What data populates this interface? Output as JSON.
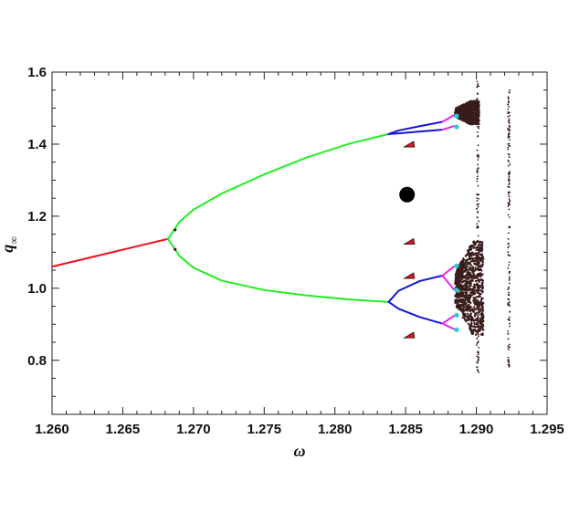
{
  "chart_data": {
    "type": "scatter",
    "title": "",
    "xlabel": "ω",
    "ylabel": "q",
    "ylabel_subscript": "∞",
    "xlim": [
      1.26,
      1.295
    ],
    "ylim": [
      0.65,
      1.6
    ],
    "x_ticks": [
      "1.260",
      "1.265",
      "1.270",
      "1.275",
      "1.280",
      "1.285",
      "1.290",
      "1.295"
    ],
    "y_ticks": [
      "0.8",
      "1.0",
      "1.2",
      "1.4",
      "1.6"
    ],
    "grid": false,
    "colors": {
      "period1": "#e8141e",
      "period2": "#22ee22",
      "period4": "#1515d6",
      "period8": "#ee22ee",
      "period16": "#22d0d0",
      "chaos": "#3a1c1c",
      "marker": "#000000"
    },
    "series": [
      {
        "period": 1,
        "color_key": "period1",
        "x": [
          1.26,
          1.2682
        ],
        "y": [
          1.06,
          1.137
        ]
      },
      {
        "period": 2,
        "color_key": "period2",
        "x": [
          1.2682,
          1.269,
          1.27,
          1.272,
          1.275,
          1.278,
          1.281,
          1.2838
        ],
        "upper": [
          1.137,
          1.184,
          1.218,
          1.263,
          1.316,
          1.363,
          1.401,
          1.428
        ],
        "lower": [
          1.137,
          1.09,
          1.057,
          1.021,
          0.995,
          0.98,
          0.969,
          0.962
        ]
      },
      {
        "period": 4,
        "color_key": "period4",
        "branches": [
          {
            "x": [
              1.2838,
              1.2845,
              1.286,
              1.2876
            ],
            "y": [
              1.428,
              1.438,
              1.45,
              1.462
            ]
          },
          {
            "x": [
              1.2838,
              1.2845,
              1.286,
              1.2876
            ],
            "y": [
              1.428,
              1.43,
              1.435,
              1.44
            ]
          },
          {
            "x": [
              1.2838,
              1.2845,
              1.286,
              1.2876
            ],
            "y": [
              0.962,
              0.993,
              1.02,
              1.035
            ]
          },
          {
            "x": [
              1.2838,
              1.2845,
              1.286,
              1.2876
            ],
            "y": [
              0.962,
              0.943,
              0.92,
              0.902
            ]
          }
        ]
      },
      {
        "period": 8,
        "color_key": "period8",
        "branches": [
          {
            "x": [
              1.2876,
              1.2884
            ],
            "y": [
              1.462,
              1.48
            ]
          },
          {
            "x": [
              1.2876,
              1.2884
            ],
            "y": [
              1.44,
              1.45
            ]
          },
          {
            "x": [
              1.2876,
              1.2884
            ],
            "y": [
              1.035,
              1.06
            ]
          },
          {
            "x": [
              1.2876,
              1.2884
            ],
            "y": [
              1.035,
              0.997
            ]
          },
          {
            "x": [
              1.2876,
              1.2884
            ],
            "y": [
              0.902,
              0.923
            ]
          },
          {
            "x": [
              1.2876,
              1.2884
            ],
            "y": [
              0.902,
              0.887
            ]
          }
        ]
      },
      {
        "period": 16,
        "color_key": "period16",
        "x": [
          1.2886,
          1.2886,
          1.2886,
          1.2886,
          1.2886,
          1.2886
        ],
        "y": [
          1.478,
          1.448,
          1.062,
          0.995,
          0.925,
          0.885
        ]
      },
      {
        "period": 3,
        "color_key": "period1",
        "window": true,
        "x": [
          1.2853,
          1.2853,
          1.2853,
          1.2853
        ],
        "y": [
          1.4,
          1.13,
          1.035,
          0.87
        ]
      }
    ],
    "chaos_bands": [
      {
        "x_range": [
          1.2885,
          1.2902
        ],
        "y_range": [
          1.455,
          1.52
        ]
      },
      {
        "x_range": [
          1.2885,
          1.2905
        ],
        "y_range": [
          0.87,
          1.13
        ]
      }
    ],
    "scatter_columns": [
      {
        "x": 1.2901,
        "y_range": [
          0.76,
          1.58
        ]
      },
      {
        "x": 1.2923,
        "y_range": [
          0.78,
          1.55
        ]
      }
    ],
    "marker": {
      "x": 1.2851,
      "y": 1.26
    }
  }
}
